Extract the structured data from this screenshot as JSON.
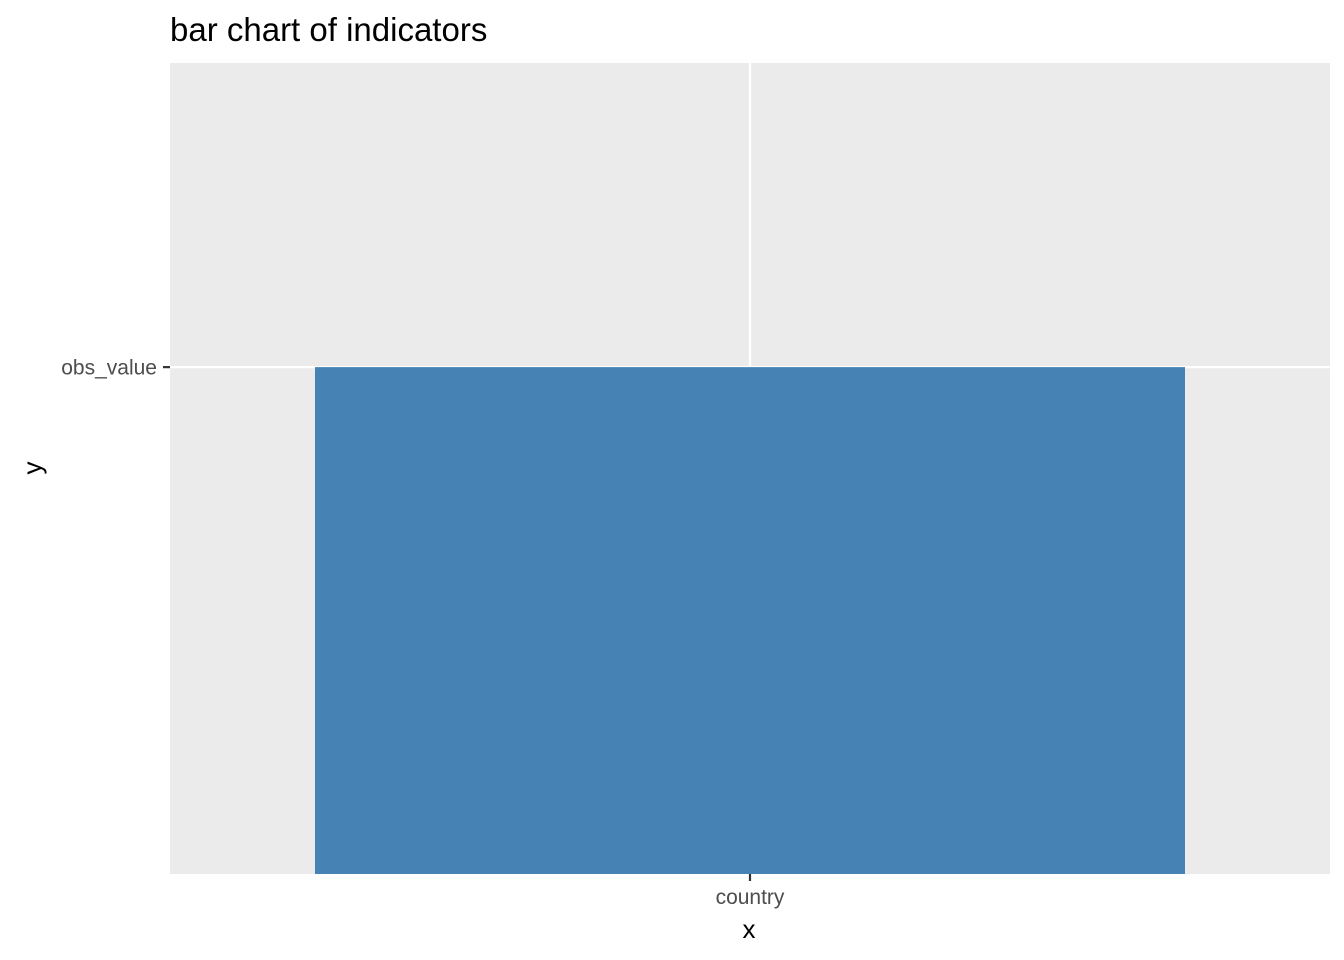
{
  "chart_data": {
    "type": "bar",
    "title": "bar chart of indicators",
    "xlabel": "x",
    "ylabel": "y",
    "categories": [
      "country"
    ],
    "y_ticks": [
      "obs_value"
    ],
    "series": [
      {
        "values": [
          "obs_value"
        ]
      }
    ],
    "grid": true,
    "legend": "none",
    "colors": {
      "bar": "#4682b4",
      "panel": "#ebebeb",
      "gridline": "#ffffff",
      "tick": "#333333"
    }
  }
}
